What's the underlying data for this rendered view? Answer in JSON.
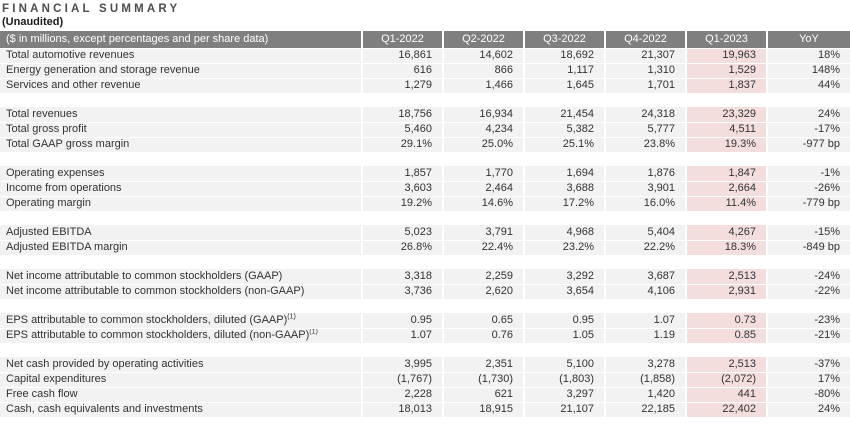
{
  "title": "FINANCIAL SUMMARY",
  "subtitle": "(Unaudited)",
  "colors": {
    "header_bg": "#7f7f7f",
    "header_text": "#ffffff",
    "row_bg": "#f2f2f2",
    "highlight_bg": "#f3dedd",
    "body_text": "#333333",
    "title_text": "#4d4d4f"
  },
  "table": {
    "header": {
      "label": "($ in millions, except percentages and per share data)",
      "columns": [
        "Q1-2022",
        "Q2-2022",
        "Q3-2022",
        "Q4-2022",
        "Q1-2023",
        "YoY"
      ]
    },
    "highlight_column": "Q1-2023",
    "highlight_col_index": 4,
    "sections": [
      {
        "rows": [
          {
            "label": "Total automotive revenues",
            "values": [
              "16,861",
              "14,602",
              "18,692",
              "21,307",
              "19,963",
              "18%"
            ]
          },
          {
            "label": "Energy generation and storage revenue",
            "values": [
              "616",
              "866",
              "1,117",
              "1,310",
              "1,529",
              "148%"
            ]
          },
          {
            "label": "Services and other revenue",
            "values": [
              "1,279",
              "1,466",
              "1,645",
              "1,701",
              "1,837",
              "44%"
            ]
          }
        ]
      },
      {
        "rows": [
          {
            "label": "Total revenues",
            "values": [
              "18,756",
              "16,934",
              "21,454",
              "24,318",
              "23,329",
              "24%"
            ]
          },
          {
            "label": "Total gross profit",
            "values": [
              "5,460",
              "4,234",
              "5,382",
              "5,777",
              "4,511",
              "-17%"
            ]
          },
          {
            "label": "Total GAAP gross margin",
            "values": [
              "29.1%",
              "25.0%",
              "25.1%",
              "23.8%",
              "19.3%",
              "-977 bp"
            ]
          }
        ]
      },
      {
        "rows": [
          {
            "label": "Operating expenses",
            "values": [
              "1,857",
              "1,770",
              "1,694",
              "1,876",
              "1,847",
              "-1%"
            ]
          },
          {
            "label": "Income from operations",
            "values": [
              "3,603",
              "2,464",
              "3,688",
              "3,901",
              "2,664",
              "-26%"
            ]
          },
          {
            "label": "Operating margin",
            "values": [
              "19.2%",
              "14.6%",
              "17.2%",
              "16.0%",
              "11.4%",
              "-779 bp"
            ]
          }
        ]
      },
      {
        "rows": [
          {
            "label": "Adjusted EBITDA",
            "values": [
              "5,023",
              "3,791",
              "4,968",
              "5,404",
              "4,267",
              "-15%"
            ]
          },
          {
            "label": "Adjusted EBITDA margin",
            "values": [
              "26.8%",
              "22.4%",
              "23.2%",
              "22.2%",
              "18.3%",
              "-849 bp"
            ]
          }
        ]
      },
      {
        "rows": [
          {
            "label": "Net income attributable to common stockholders (GAAP)",
            "values": [
              "3,318",
              "2,259",
              "3,292",
              "3,687",
              "2,513",
              "-24%"
            ]
          },
          {
            "label": "Net income attributable to common stockholders (non-GAAP)",
            "values": [
              "3,736",
              "2,620",
              "3,654",
              "4,106",
              "2,931",
              "-22%"
            ]
          }
        ]
      },
      {
        "rows": [
          {
            "label": "EPS attributable to common stockholders, diluted (GAAP)",
            "label_sup": "(1)",
            "values": [
              "0.95",
              "0.65",
              "0.95",
              "1.07",
              "0.73",
              "-23%"
            ]
          },
          {
            "label": "EPS attributable to common stockholders, diluted (non-GAAP)",
            "label_sup": "(1)",
            "values": [
              "1.07",
              "0.76",
              "1.05",
              "1.19",
              "0.85",
              "-21%"
            ]
          }
        ]
      },
      {
        "rows": [
          {
            "label": "Net cash provided by operating activities",
            "values": [
              "3,995",
              "2,351",
              "5,100",
              "3,278",
              "2,513",
              "-37%"
            ]
          },
          {
            "label": "Capital expenditures",
            "values": [
              "(1,767)",
              "(1,730)",
              "(1,803)",
              "(1,858)",
              "(2,072)",
              "17%"
            ]
          },
          {
            "label": "Free cash flow",
            "values": [
              "2,228",
              "621",
              "3,297",
              "1,420",
              "441",
              "-80%"
            ]
          },
          {
            "label": "Cash, cash equivalents and investments",
            "values": [
              "18,013",
              "18,915",
              "21,107",
              "22,185",
              "22,402",
              "24%"
            ]
          }
        ]
      }
    ]
  }
}
